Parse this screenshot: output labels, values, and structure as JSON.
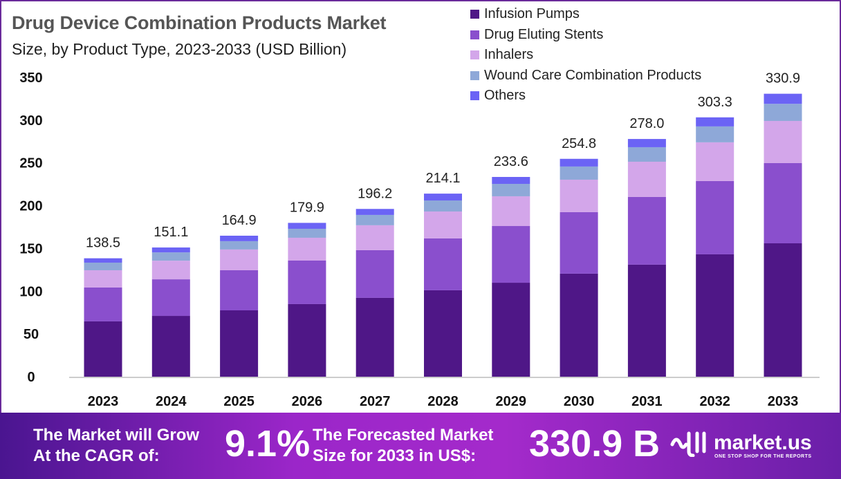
{
  "chart_data": {
    "type": "bar",
    "stacked": true,
    "title": "Drug Device Combination Products Market",
    "subtitle": "Size, by Product Type, 2023-2033 (USD Billion)",
    "xlabel": "",
    "ylabel": "",
    "ylim": [
      0,
      350
    ],
    "yticks": [
      0,
      50,
      100,
      150,
      200,
      250,
      300,
      350
    ],
    "grid": false,
    "legend_position": "top-right",
    "categories": [
      "2023",
      "2024",
      "2025",
      "2026",
      "2027",
      "2028",
      "2029",
      "2030",
      "2031",
      "2032",
      "2033"
    ],
    "totals": [
      138.5,
      151.1,
      164.9,
      179.9,
      196.2,
      214.1,
      233.6,
      254.8,
      278.0,
      303.3,
      330.9
    ],
    "total_labels": [
      "138.5",
      "151.1",
      "164.9",
      "179.9",
      "196.2",
      "214.1",
      "233.6",
      "254.8",
      "278.0",
      "303.3",
      "330.9"
    ],
    "series": [
      {
        "name": "Infusion Pumps",
        "color": "#4f1787",
        "values": [
          64.7,
          71.1,
          77.6,
          84.9,
          92.2,
          101.1,
          109.9,
          120.5,
          131.0,
          143.1,
          156.0
        ]
      },
      {
        "name": "Drug Eluting Stents",
        "color": "#8a4fcd",
        "values": [
          39.6,
          42.8,
          46.9,
          50.9,
          55.8,
          60.6,
          66.3,
          71.9,
          79.2,
          85.7,
          93.8
        ]
      },
      {
        "name": "Inhalers",
        "color": "#d3a6ea",
        "values": [
          20.2,
          21.8,
          24.3,
          26.7,
          29.1,
          31.5,
          34.8,
          38.0,
          41.2,
          45.3,
          49.3
        ]
      },
      {
        "name": "Wound Care Combination Products",
        "color": "#8ea8d8",
        "values": [
          8.9,
          9.7,
          9.7,
          10.5,
          12.1,
          12.9,
          14.5,
          15.4,
          17.0,
          18.6,
          20.0
        ]
      },
      {
        "name": "Others",
        "color": "#6b63f5",
        "values": [
          5.1,
          5.7,
          6.4,
          6.9,
          7.0,
          8.0,
          8.1,
          9.0,
          9.6,
          10.6,
          11.8
        ]
      }
    ]
  },
  "banner": {
    "cagr_text_line1": "The Market will Grow",
    "cagr_text_line2": "At the CAGR of:",
    "cagr_value": "9.1%",
    "forecast_text_line1": "The Forecasted Market",
    "forecast_text_line2": "Size for 2033 in US$:",
    "forecast_value": "330.9 B",
    "logo_text": "market.us",
    "logo_tagline": "ONE STOP SHOP FOR THE REPORTS"
  }
}
